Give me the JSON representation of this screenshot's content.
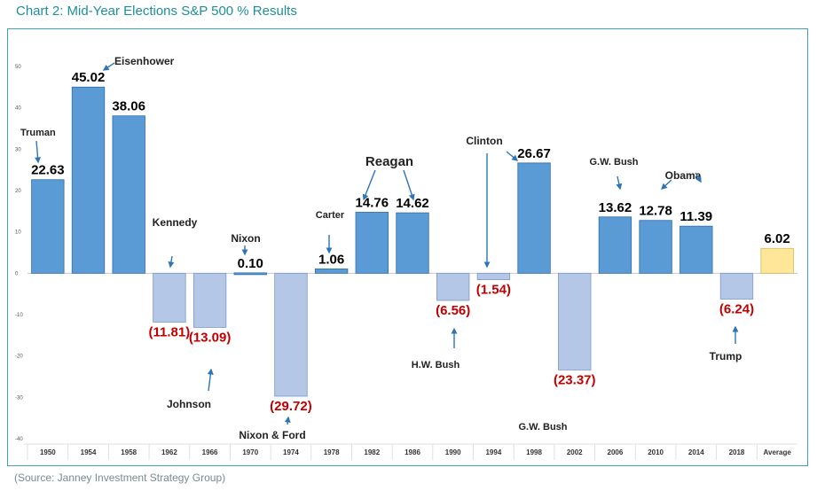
{
  "heading": "Chart 2: Mid-Year Elections S&P 500 % Results",
  "source": "(Source: Janney Investment Strategy Group)",
  "colors": {
    "positive": "#5b9bd5",
    "negative": "#b4c7e7",
    "average": "#ffe699",
    "value_label": "#000000",
    "negative_label": "#c00000",
    "arrow": "#2e75b6",
    "frame": "#3fa3b3"
  },
  "chart_data": {
    "type": "bar",
    "title": "",
    "xlabel": "",
    "ylabel": "",
    "ylim": [
      -40,
      50
    ],
    "yticks": [
      50,
      40,
      30,
      20,
      10,
      0,
      -10,
      -20,
      -30,
      -40
    ],
    "grid": false,
    "categories": [
      "1950",
      "1954",
      "1958",
      "1962",
      "1966",
      "1970",
      "1974",
      "1978",
      "1982",
      "1986",
      "1990",
      "1994",
      "1998",
      "2002",
      "2006",
      "2010",
      "2014",
      "2018",
      "Average"
    ],
    "values": [
      22.63,
      45.02,
      38.06,
      -11.81,
      -13.09,
      0.1,
      -29.72,
      1.06,
      14.76,
      14.62,
      -6.56,
      -1.54,
      26.67,
      -23.37,
      13.62,
      12.78,
      11.39,
      -6.24,
      6.02
    ],
    "value_labels": [
      "22.63",
      "45.02",
      "38.06",
      "(11.81)",
      "(13.09)",
      "0.10",
      "(29.72)",
      "1.06",
      "14.76",
      "14.62",
      "(6.56)",
      "(1.54)",
      "26.67",
      "(23.37)",
      "13.62",
      "12.78",
      "11.39",
      "(6.24)",
      "6.02"
    ],
    "annotations": [
      {
        "text": "Truman",
        "category": "1950"
      },
      {
        "text": "Eisenhower",
        "category": "1954"
      },
      {
        "text": "Kennedy",
        "category": "1962"
      },
      {
        "text": "Johnson",
        "category": "1966"
      },
      {
        "text": "Nixon",
        "category": "1970"
      },
      {
        "text": "Nixon & Ford",
        "category": "1974"
      },
      {
        "text": "Carter",
        "category": "1978"
      },
      {
        "text": "Reagan",
        "category": "1982"
      },
      {
        "text": "H.W. Bush",
        "category": "1990"
      },
      {
        "text": "Clinton",
        "category": "1994"
      },
      {
        "text": "G.W. Bush",
        "category": "2002"
      },
      {
        "text": "G.W. Bush",
        "category": "2006"
      },
      {
        "text": "Obama",
        "category": "2010"
      },
      {
        "text": "Trump",
        "category": "2018"
      }
    ]
  }
}
